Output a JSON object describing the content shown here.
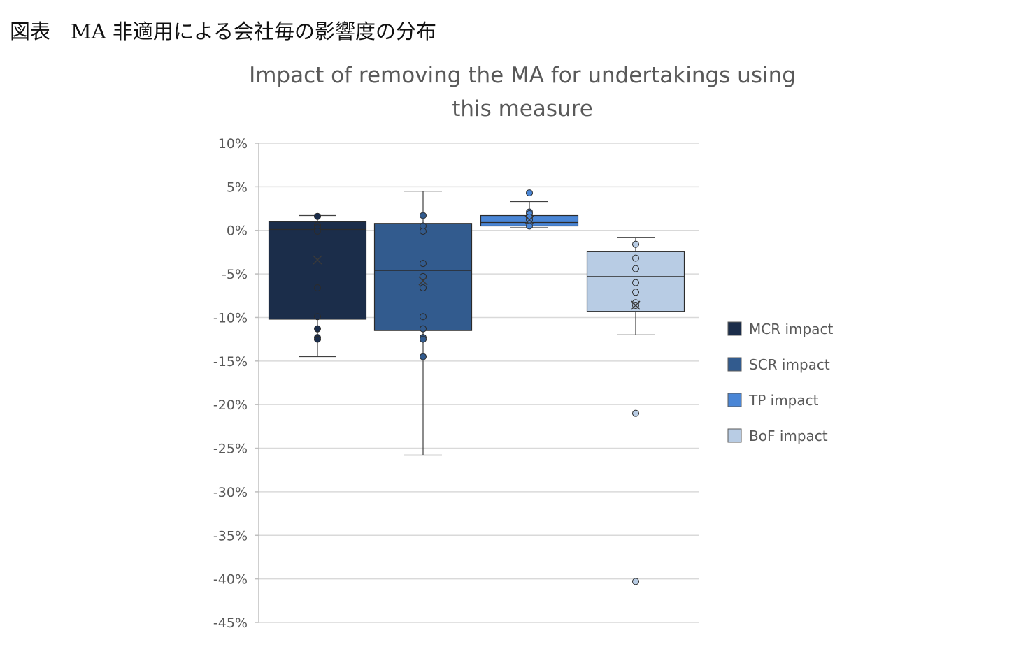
{
  "caption": "図表　MA 非適用による会社毎の影響度の分布",
  "chart_data": {
    "type": "box",
    "title_lines": [
      "Impact of removing the MA for undertakings using",
      "this measure"
    ],
    "ylim": [
      -45,
      10
    ],
    "y_ticks": [
      10,
      5,
      0,
      -5,
      -10,
      -15,
      -20,
      -25,
      -30,
      -35,
      -40,
      -45
    ],
    "y_tick_labels": [
      "10%",
      "5%",
      "0%",
      "-5%",
      "-10%",
      "-15%",
      "-20%",
      "-25%",
      "-30%",
      "-35%",
      "-40%",
      "-45%"
    ],
    "grid": true,
    "legend_position": "right",
    "series": [
      {
        "name": "MCR impact",
        "color": "#1b2d4a",
        "whisker_low": -14.5,
        "q1": -10.2,
        "median": 0.1,
        "q3": 1.0,
        "whisker_high": 1.7,
        "mean": -3.4,
        "points": [
          1.6,
          0.6,
          0.3,
          -0.1,
          -6.6,
          -9.9,
          -11.3,
          -12.3,
          -12.5
        ]
      },
      {
        "name": "SCR impact",
        "color": "#325b8e",
        "whisker_low": -25.8,
        "q1": -11.5,
        "median": -4.6,
        "q3": 0.8,
        "whisker_high": 4.5,
        "mean": -5.8,
        "points": [
          1.7,
          0.5,
          -0.1,
          -3.8,
          -5.3,
          -6.6,
          -9.9,
          -11.3,
          -12.3,
          -12.5,
          -14.5
        ]
      },
      {
        "name": "TP impact",
        "color": "#4a86d6",
        "whisker_low": 0.3,
        "q1": 0.5,
        "median": 0.9,
        "q3": 1.7,
        "whisker_high": 3.3,
        "mean": 1.2,
        "points": [
          4.3,
          2.1,
          1.9,
          1.5,
          1.2,
          0.5
        ]
      },
      {
        "name": "BoF impact",
        "color": "#b8cce4",
        "whisker_low": -12.0,
        "q1": -9.3,
        "median": -5.3,
        "q3": -2.4,
        "whisker_high": -0.8,
        "mean": -8.6,
        "points": [
          -1.6,
          -3.2,
          -4.4,
          -6.0,
          -7.1,
          -8.3,
          -8.6,
          -21.0,
          -40.3
        ]
      }
    ]
  }
}
